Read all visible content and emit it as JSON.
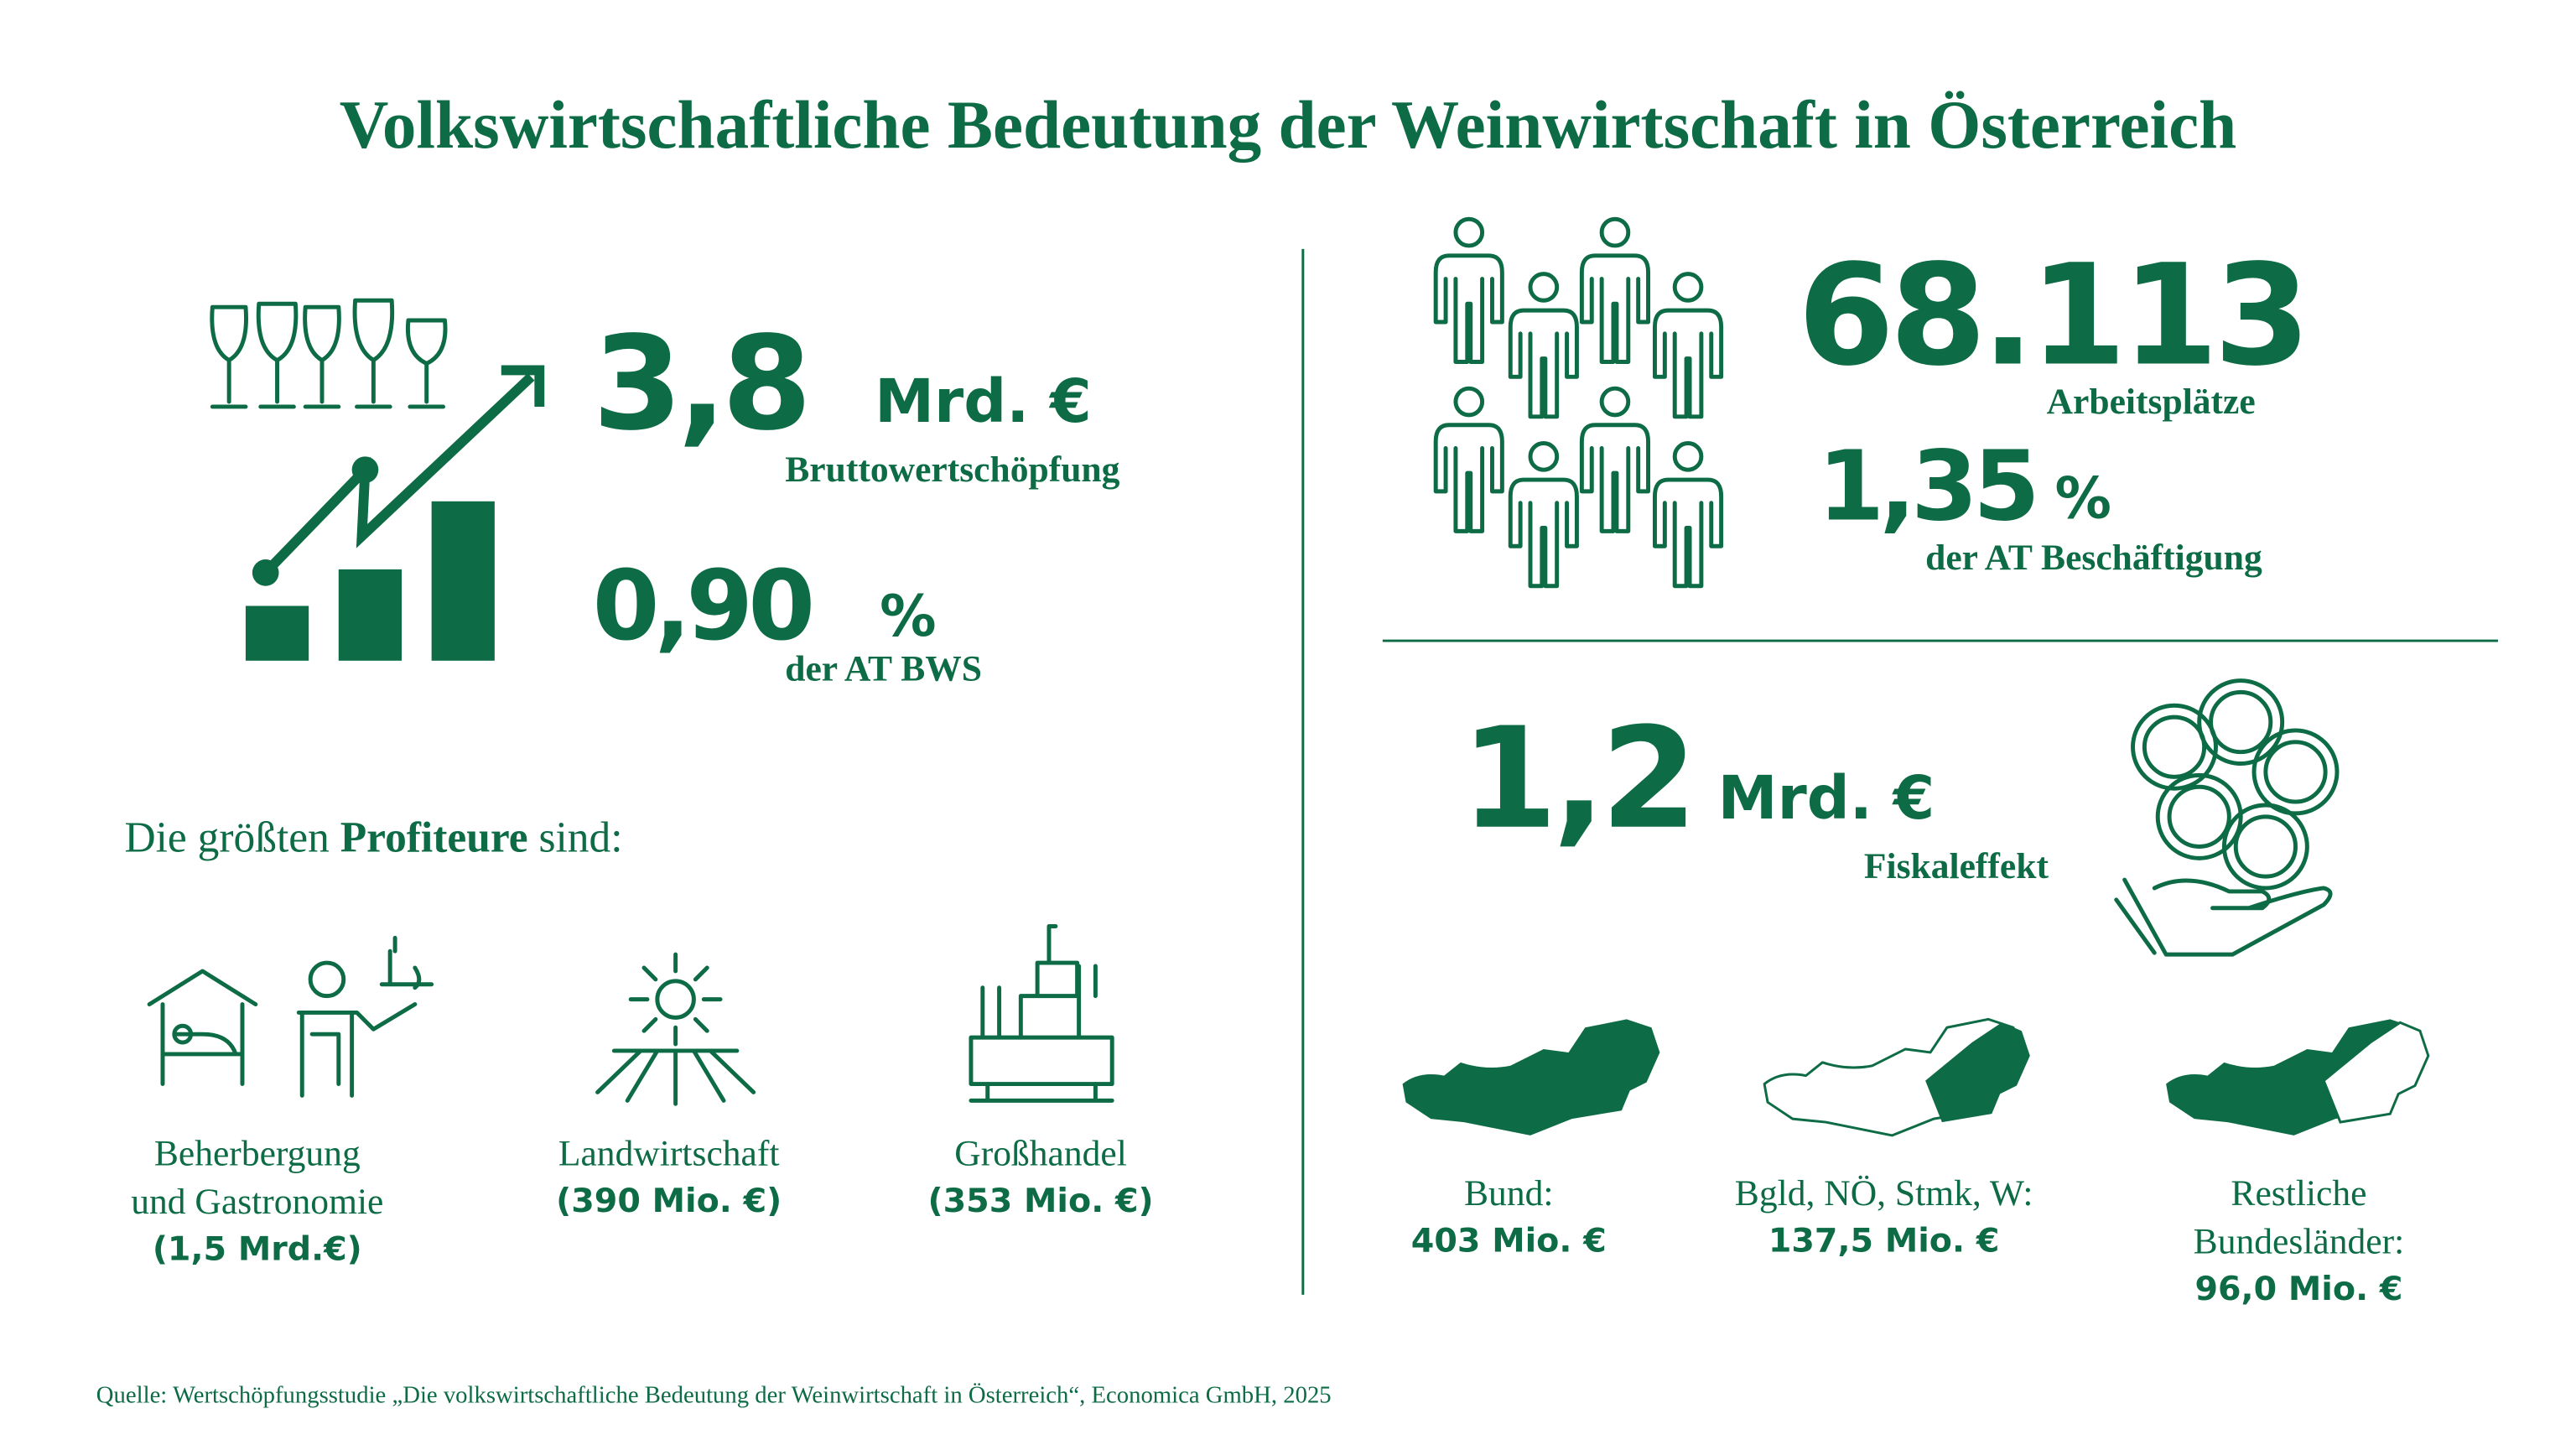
{
  "header": {
    "title": "Volkswirtschaftliche Bedeutung der Weinwirtschaft in Österreich"
  },
  "value_added": {
    "value": "3,8",
    "unit": "Mrd. €",
    "label": "Bruttowertschöpfung"
  },
  "value_added_share": {
    "value": "0,90",
    "unit": "%",
    "label": "der AT BWS"
  },
  "jobs": {
    "value": "68.113",
    "label": "Arbeitsplätze"
  },
  "jobs_share": {
    "value": "1,35",
    "unit": "%",
    "label": "der AT Beschäftigung"
  },
  "fiscal_effect": {
    "value": "1,2",
    "unit": "Mrd. €",
    "label": "Fiskaleffekt"
  },
  "profiteers": {
    "heading": [
      "Die größten ",
      "Profiteure",
      " sind:"
    ],
    "items": [
      {
        "label": [
          "Beherbergung",
          "und Gastronomie"
        ],
        "amount": "(1,5 Mrd.€)"
      },
      {
        "label": [
          "Landwirtschaft"
        ],
        "amount": "(390 Mio. €)"
      },
      {
        "label": [
          "Großhandel"
        ],
        "amount": "(353 Mio. €)"
      }
    ]
  },
  "fiscal_split": [
    {
      "label": [
        "Bund:"
      ],
      "amount": "403 Mio. €"
    },
    {
      "label": [
        "Bgld, NÖ, Stmk, W:"
      ],
      "amount": "137,5 Mio. €"
    },
    {
      "label": [
        "Restliche",
        "Bundesländer:"
      ],
      "amount": "96,0 Mio. €"
    }
  ],
  "source": "Quelle: Wertschöpfungsstudie „Die volkswirtschaftliche Bedeutung der Weinwirtschaft in Österreich“, Economica GmbH, 2025"
}
